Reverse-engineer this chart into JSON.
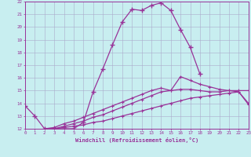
{
  "bg_color": "#c8eef0",
  "line_color": "#993399",
  "grid_color": "#aaaacc",
  "xlabel": "Windchill (Refroidissement éolien,°C)",
  "xmin": 0,
  "xmax": 23,
  "ymin": 12,
  "ymax": 22,
  "line1_x": [
    0,
    1,
    2,
    3,
    4,
    5,
    6,
    7,
    8,
    9,
    10,
    11,
    12,
    13,
    14,
    15,
    16,
    17,
    18
  ],
  "line1_y": [
    13.8,
    13.0,
    12.0,
    12.0,
    12.0,
    12.0,
    12.5,
    14.9,
    16.7,
    18.6,
    20.4,
    21.4,
    21.3,
    21.7,
    21.9,
    21.3,
    19.8,
    18.4,
    16.3
  ],
  "line2_x": [
    2,
    3,
    4,
    5,
    6,
    7,
    8,
    9,
    10,
    11,
    12,
    13,
    14,
    15,
    16,
    17,
    18,
    19,
    20,
    21,
    22,
    23
  ],
  "line2_y": [
    12.0,
    12.0,
    12.1,
    12.2,
    12.3,
    12.5,
    12.6,
    12.8,
    13.0,
    13.2,
    13.4,
    13.6,
    13.8,
    14.0,
    14.2,
    14.4,
    14.5,
    14.6,
    14.7,
    14.8,
    14.9,
    14.0
  ],
  "line3_x": [
    2,
    3,
    4,
    5,
    6,
    7,
    8,
    9,
    10,
    11,
    12,
    13,
    14,
    15,
    16,
    17,
    18,
    19,
    20,
    21,
    22,
    23
  ],
  "line3_y": [
    12.0,
    12.0,
    12.2,
    12.4,
    12.6,
    12.9,
    13.1,
    13.4,
    13.7,
    14.0,
    14.3,
    14.6,
    14.9,
    15.0,
    15.1,
    15.1,
    15.0,
    14.9,
    14.9,
    15.0,
    15.0,
    15.0
  ],
  "line4_x": [
    2,
    3,
    4,
    5,
    6,
    7,
    8,
    9,
    10,
    11,
    12,
    13,
    14,
    15,
    16,
    17,
    18,
    19,
    20,
    21,
    22,
    23
  ],
  "line4_y": [
    12.0,
    12.1,
    12.4,
    12.6,
    12.9,
    13.2,
    13.5,
    13.8,
    14.1,
    14.4,
    14.7,
    15.0,
    15.2,
    15.0,
    16.1,
    15.8,
    15.5,
    15.3,
    15.1,
    15.0,
    14.9,
    13.9
  ]
}
